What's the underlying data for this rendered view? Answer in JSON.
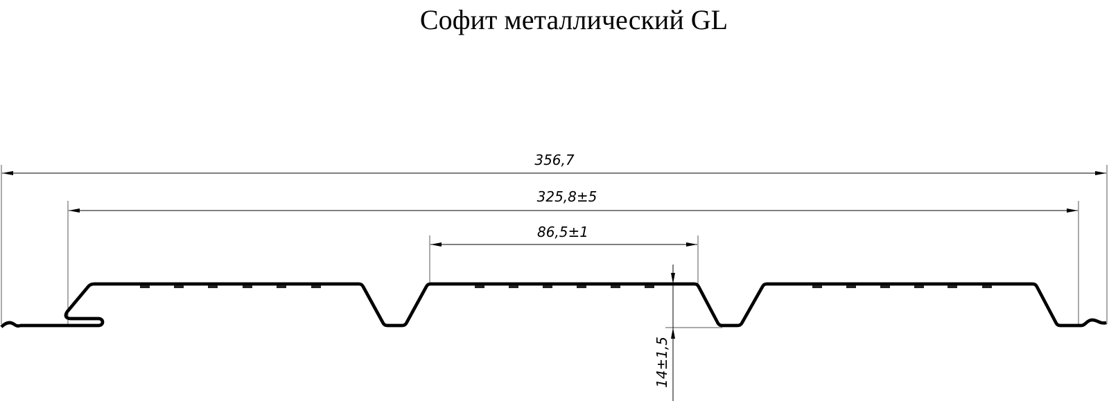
{
  "title": "Софит металлический GL",
  "dimensions": {
    "overall_width": "356,7",
    "working_width": "325,8±5",
    "ridge_width": "86,5±1",
    "profile_height": "14±1,5"
  }
}
